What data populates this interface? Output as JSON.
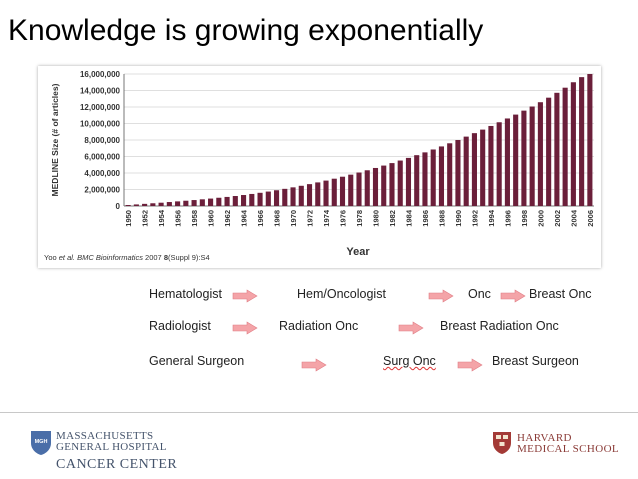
{
  "title": "Knowledge is growing exponentially",
  "citation": {
    "authors": "Yoo ",
    "etal": "et al. BMC Bioinformatics",
    "year": " 2007 ",
    "vol": "8",
    "rest": "(Suppl 9):S4"
  },
  "chart_data": {
    "type": "bar",
    "title": "",
    "xlabel": "Year",
    "ylabel": "MEDLINE Size (# of articles)",
    "ylim": [
      0,
      16000000
    ],
    "yticks": [
      0,
      2000000,
      4000000,
      6000000,
      8000000,
      10000000,
      12000000,
      14000000,
      16000000
    ],
    "ytick_labels": [
      "0",
      "2,000,000",
      "4,000,000",
      "6,000,000",
      "8,000,000",
      "10,000,000",
      "12,000,000",
      "14,000,000",
      "16,000,000"
    ],
    "xtick_labels": [
      "1950",
      "1952",
      "1954",
      "1956",
      "1958",
      "1960",
      "1962",
      "1964",
      "1966",
      "1968",
      "1970",
      "1972",
      "1974",
      "1976",
      "1978",
      "1980",
      "1982",
      "1984",
      "1986",
      "1988",
      "1990",
      "1992",
      "1994",
      "1996",
      "1998",
      "2000",
      "2002",
      "2004",
      "2006"
    ],
    "bar_color": "#6b1f3a",
    "grid": true,
    "categories": [
      "1950",
      "1951",
      "1952",
      "1953",
      "1954",
      "1955",
      "1956",
      "1957",
      "1958",
      "1959",
      "1960",
      "1961",
      "1962",
      "1963",
      "1964",
      "1965",
      "1966",
      "1967",
      "1968",
      "1969",
      "1970",
      "1971",
      "1972",
      "1973",
      "1974",
      "1975",
      "1976",
      "1977",
      "1978",
      "1979",
      "1980",
      "1981",
      "1982",
      "1983",
      "1984",
      "1985",
      "1986",
      "1987",
      "1988",
      "1989",
      "1990",
      "1991",
      "1992",
      "1993",
      "1994",
      "1995",
      "1996",
      "1997",
      "1998",
      "1999",
      "2000",
      "2001",
      "2002",
      "2003",
      "2004",
      "2005",
      "2006"
    ],
    "values": [
      120000,
      190000,
      260000,
      330000,
      400000,
      480000,
      560000,
      640000,
      720000,
      810000,
      900000,
      1000000,
      1100000,
      1210000,
      1330000,
      1460000,
      1600000,
      1750000,
      1910000,
      2080000,
      2260000,
      2450000,
      2650000,
      2860000,
      3080000,
      3310000,
      3550000,
      3800000,
      4060000,
      4330000,
      4610000,
      4900000,
      5200000,
      5510000,
      5830000,
      6160000,
      6500000,
      6850000,
      7220000,
      7600000,
      8000000,
      8410000,
      8830000,
      9260000,
      9700000,
      10150000,
      10610000,
      11080000,
      11560000,
      12060000,
      12580000,
      13130000,
      13720000,
      14340000,
      15000000,
      15620000,
      16000000
    ]
  },
  "flows": [
    {
      "from": "Hematologist",
      "mid": "Hem/Oncologist",
      "next": "Onc",
      "last": "Breast Onc"
    },
    {
      "from": "Radiologist",
      "mid": "Radiation Onc",
      "last": "Breast Radiation Onc"
    },
    {
      "from": "General Surgeon",
      "mid": "Surg Onc",
      "last": "Breast Surgeon"
    }
  ],
  "arrow_color": "#f4a4a8",
  "logos": {
    "mgh_line1": "MASSACHUSETTS",
    "mgh_line2": "GENERAL HOSPITAL",
    "mgh_cc": "CANCER CENTER",
    "mgh_shield_text": "MGH",
    "harvard_line1": "HARVARD",
    "harvard_line2": "MEDICAL SCHOOL"
  }
}
